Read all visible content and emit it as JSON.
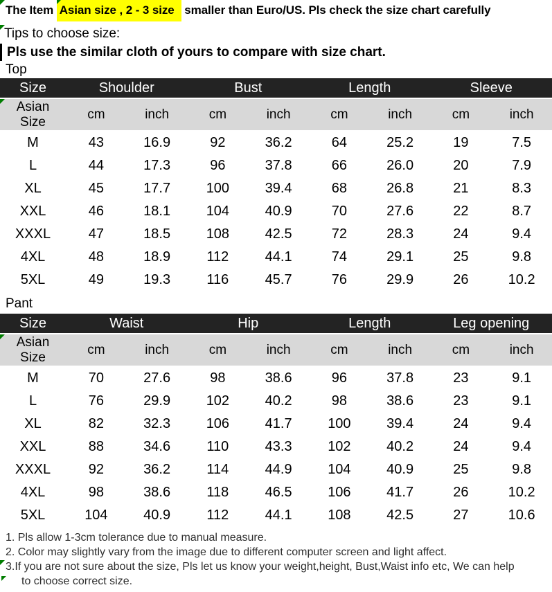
{
  "header": {
    "title_prefix": "The Item ",
    "title_highlight": "Asian size , 2 - 3 size",
    "title_suffix": " smaller than Euro/US. Pls check the size chart carefully",
    "tips_line": "Tips to choose size:",
    "compare_line": "Pls use the similar cloth of yours to compare with size chart."
  },
  "colors": {
    "header_bg": "#232323",
    "header_text": "#ffffff",
    "subheader_bg": "#d8d8d8",
    "highlight_yellow": "#ffff00",
    "flag_green": "#007d00"
  },
  "icons": {
    "flag_triangle": "green corner triangle (cell flag marker)"
  },
  "tables": [
    {
      "section_label": "Top",
      "size_header": "Size",
      "size_sub_header": "Asian Size",
      "groups": [
        "Shoulder",
        "Bust",
        "Length",
        "Sleeve"
      ],
      "units": [
        "cm",
        "inch",
        "cm",
        "inch",
        "cm",
        "inch",
        "cm",
        "inch"
      ],
      "rows": [
        [
          "M",
          "43",
          "16.9",
          "92",
          "36.2",
          "64",
          "25.2",
          "19",
          "7.5"
        ],
        [
          "L",
          "44",
          "17.3",
          "96",
          "37.8",
          "66",
          "26.0",
          "20",
          "7.9"
        ],
        [
          "XL",
          "45",
          "17.7",
          "100",
          "39.4",
          "68",
          "26.8",
          "21",
          "8.3"
        ],
        [
          "XXL",
          "46",
          "18.1",
          "104",
          "40.9",
          "70",
          "27.6",
          "22",
          "8.7"
        ],
        [
          "XXXL",
          "47",
          "18.5",
          "108",
          "42.5",
          "72",
          "28.3",
          "24",
          "9.4"
        ],
        [
          "4XL",
          "48",
          "18.9",
          "112",
          "44.1",
          "74",
          "29.1",
          "25",
          "9.8"
        ],
        [
          "5XL",
          "49",
          "19.3",
          "116",
          "45.7",
          "76",
          "29.9",
          "26",
          "10.2"
        ]
      ]
    },
    {
      "section_label": "Pant",
      "size_header": "Size",
      "size_sub_header": "Asian Size",
      "groups": [
        "Waist",
        "Hip",
        "Length",
        "Leg opening"
      ],
      "units": [
        "cm",
        "inch",
        "cm",
        "inch",
        "cm",
        "inch",
        "cm",
        "inch"
      ],
      "rows": [
        [
          "M",
          "70",
          "27.6",
          "98",
          "38.6",
          "96",
          "37.8",
          "23",
          "9.1"
        ],
        [
          "L",
          "76",
          "29.9",
          "102",
          "40.2",
          "98",
          "38.6",
          "23",
          "9.1"
        ],
        [
          "XL",
          "82",
          "32.3",
          "106",
          "41.7",
          "100",
          "39.4",
          "24",
          "9.4"
        ],
        [
          "XXL",
          "88",
          "34.6",
          "110",
          "43.3",
          "102",
          "40.2",
          "24",
          "9.4"
        ],
        [
          "XXXL",
          "92",
          "36.2",
          "114",
          "44.9",
          "104",
          "40.9",
          "25",
          "9.8"
        ],
        [
          "4XL",
          "98",
          "38.6",
          "118",
          "46.5",
          "106",
          "41.7",
          "26",
          "10.2"
        ],
        [
          "5XL",
          "104",
          "40.9",
          "112",
          "44.1",
          "108",
          "42.5",
          "27",
          "10.6"
        ]
      ]
    }
  ],
  "notes": {
    "line1": "1. Pls allow 1-3cm tolerance due to manual measure.",
    "line2": "2. Color may slightly vary from the image due to different computer screen and light affect.",
    "line3": "3.If you are not sure about the size, Pls let us know your weight,height, Bust,Waist info etc, We can help",
    "line3_wrap": "to choose correct size."
  }
}
